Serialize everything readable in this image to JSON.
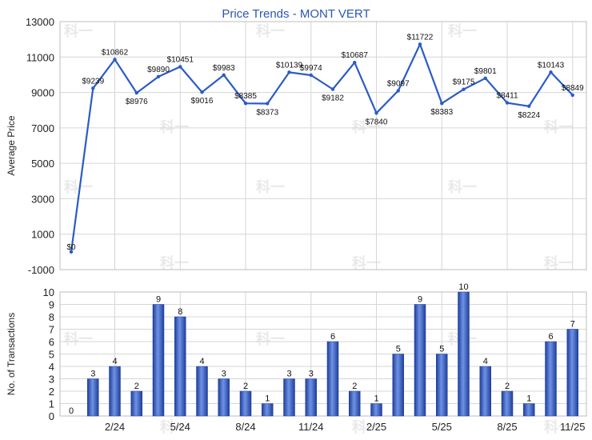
{
  "chart_data": [
    {
      "type": "line",
      "title": "Price Trends - MONT VERT",
      "ylabel": "Average Price",
      "ylim": [
        -1000,
        13000
      ],
      "yticks": [
        -1000,
        1000,
        3000,
        5000,
        7000,
        9000,
        11000,
        13000
      ],
      "grid": true,
      "line_color": "#2a5cc6",
      "series": [
        {
          "values": [
            0,
            9239,
            10862,
            8976,
            9890,
            10451,
            9016,
            9983,
            8385,
            8373,
            10139,
            9974,
            9182,
            10687,
            7840,
            9097,
            11722,
            8383,
            9175,
            9801,
            8411,
            8224,
            10143,
            8849
          ],
          "labels": [
            "$0",
            "$9239",
            "$10862",
            "$8976",
            "$9890",
            "$10451",
            "$9016",
            "$9983",
            "$8385",
            "$8373",
            "$10139",
            "$9974",
            "$9182",
            "$10687",
            "$7840",
            "$9097",
            "$11722",
            "$8383",
            "$9175",
            "$9801",
            "$8411",
            "$8224",
            "$10143",
            "$8849"
          ]
        }
      ]
    },
    {
      "type": "bar",
      "ylabel": "No. of Transactions",
      "ylim": [
        0,
        10
      ],
      "yticks": [
        0,
        1,
        2,
        3,
        4,
        5,
        6,
        7,
        8,
        9,
        10
      ],
      "grid": true,
      "bar_color": "#3a66c8",
      "x_ticks": [
        "2/24",
        "5/24",
        "8/24",
        "11/24",
        "2/25",
        "5/25",
        "8/25",
        "11/25"
      ],
      "values": [
        0,
        3,
        4,
        2,
        9,
        8,
        4,
        3,
        2,
        1,
        3,
        3,
        6,
        2,
        1,
        5,
        9,
        5,
        10,
        4,
        2,
        1,
        6,
        7
      ]
    }
  ],
  "watermark": "科一"
}
